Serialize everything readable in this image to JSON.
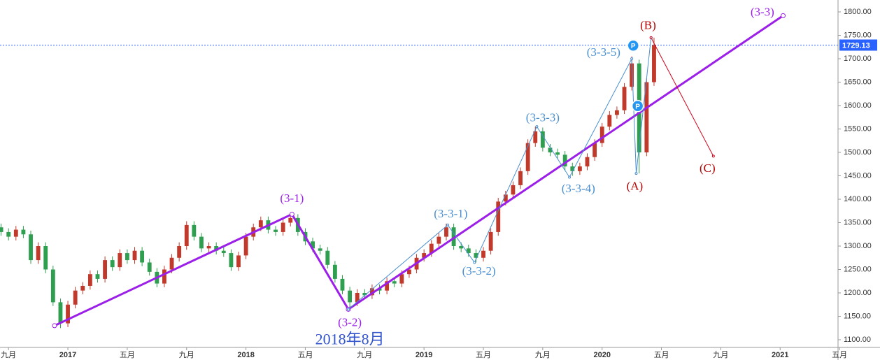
{
  "chart_data": {
    "type": "candlestick",
    "x": [
      -0.5,
      0,
      0.5,
      1,
      1.5,
      2,
      2.5,
      3,
      3.5,
      4,
      4.5,
      5,
      5.5,
      6,
      6.5,
      7,
      7.5,
      8,
      8.5,
      9,
      9.5,
      10,
      10.5,
      11,
      11.5,
      12,
      12.5,
      13,
      13.5,
      14,
      14.5,
      15,
      15.5,
      16,
      16.5,
      17,
      17.5,
      18,
      18.5,
      19,
      19.5,
      20,
      20.5,
      21,
      21.5,
      22,
      22.5,
      23,
      23.5,
      24,
      24.5,
      25,
      25.5,
      26,
      26.5,
      27,
      27.5,
      28,
      28.5,
      29,
      29.5,
      30,
      30.5,
      31,
      31.5,
      32,
      32.5,
      33,
      33.5,
      34,
      34.5,
      35,
      35.5,
      36,
      36.5,
      37,
      37.5,
      38,
      38.5,
      39,
      39.5,
      40,
      40.5,
      41,
      41.5,
      42,
      42.5,
      43,
      43.5
    ],
    "open": [
      1340,
      1330,
      1320,
      1335,
      1325,
      1270,
      1300,
      1250,
      1180,
      1135,
      1175,
      1205,
      1215,
      1240,
      1230,
      1270,
      1255,
      1285,
      1270,
      1290,
      1265,
      1245,
      1220,
      1250,
      1275,
      1300,
      1345,
      1320,
      1295,
      1300,
      1290,
      1285,
      1255,
      1280,
      1320,
      1340,
      1355,
      1335,
      1330,
      1350,
      1360,
      1330,
      1310,
      1295,
      1290,
      1260,
      1230,
      1205,
      1180,
      1200,
      1195,
      1210,
      1205,
      1225,
      1220,
      1240,
      1250,
      1275,
      1285,
      1305,
      1320,
      1340,
      1300,
      1295,
      1285,
      1275,
      1290,
      1330,
      1395,
      1410,
      1430,
      1460,
      1520,
      1545,
      1510,
      1500,
      1495,
      1470,
      1460,
      1470,
      1490,
      1520,
      1555,
      1580,
      1590,
      1640,
      1690,
      1500,
      1650
    ],
    "high": [
      1348,
      1338,
      1343,
      1343,
      1333,
      1308,
      1308,
      1258,
      1188,
      1183,
      1213,
      1223,
      1248,
      1248,
      1278,
      1278,
      1293,
      1293,
      1298,
      1298,
      1273,
      1253,
      1258,
      1283,
      1308,
      1353,
      1353,
      1328,
      1308,
      1308,
      1298,
      1293,
      1288,
      1328,
      1348,
      1363,
      1363,
      1343,
      1358,
      1368,
      1368,
      1338,
      1318,
      1303,
      1298,
      1268,
      1238,
      1213,
      1208,
      1208,
      1218,
      1218,
      1233,
      1233,
      1248,
      1258,
      1283,
      1293,
      1313,
      1328,
      1348,
      1348,
      1308,
      1303,
      1293,
      1298,
      1338,
      1403,
      1418,
      1438,
      1468,
      1528,
      1555,
      1553,
      1518,
      1508,
      1503,
      1478,
      1478,
      1498,
      1528,
      1563,
      1588,
      1598,
      1648,
      1705,
      1698,
      1658,
      1745
    ],
    "low": [
      1322,
      1312,
      1312,
      1317,
      1262,
      1262,
      1242,
      1172,
      1125,
      1127,
      1167,
      1197,
      1207,
      1222,
      1222,
      1247,
      1247,
      1262,
      1262,
      1257,
      1237,
      1212,
      1212,
      1242,
      1267,
      1292,
      1312,
      1287,
      1287,
      1282,
      1277,
      1247,
      1247,
      1272,
      1312,
      1332,
      1327,
      1322,
      1322,
      1342,
      1322,
      1302,
      1287,
      1282,
      1252,
      1222,
      1197,
      1165,
      1172,
      1187,
      1187,
      1197,
      1197,
      1212,
      1212,
      1232,
      1242,
      1267,
      1277,
      1297,
      1312,
      1292,
      1287,
      1277,
      1265,
      1267,
      1282,
      1322,
      1387,
      1402,
      1422,
      1452,
      1512,
      1502,
      1492,
      1487,
      1462,
      1450,
      1452,
      1462,
      1482,
      1512,
      1547,
      1572,
      1582,
      1632,
      1455,
      1492,
      1642
    ],
    "close": [
      1330,
      1320,
      1335,
      1325,
      1270,
      1300,
      1250,
      1180,
      1135,
      1175,
      1205,
      1215,
      1240,
      1230,
      1270,
      1255,
      1285,
      1270,
      1290,
      1265,
      1245,
      1220,
      1250,
      1275,
      1300,
      1345,
      1320,
      1295,
      1300,
      1290,
      1285,
      1255,
      1280,
      1320,
      1340,
      1355,
      1335,
      1330,
      1350,
      1360,
      1330,
      1310,
      1295,
      1290,
      1260,
      1230,
      1205,
      1180,
      1200,
      1195,
      1210,
      1205,
      1225,
      1220,
      1240,
      1250,
      1275,
      1285,
      1305,
      1320,
      1340,
      1300,
      1295,
      1285,
      1275,
      1290,
      1330,
      1395,
      1410,
      1430,
      1460,
      1520,
      1545,
      1510,
      1500,
      1495,
      1470,
      1460,
      1470,
      1490,
      1520,
      1555,
      1580,
      1590,
      1640,
      1690,
      1500,
      1650,
      1729
    ],
    "up_color": "#c0392b",
    "down_color": "#2e9e4f",
    "xlim": [
      -0.575,
      55.9
    ],
    "ylim": [
      1083.6,
      1825.4
    ],
    "xticks": [
      {
        "value": 0,
        "label": "九月"
      },
      {
        "value": 4,
        "label": "2017"
      },
      {
        "value": 8,
        "label": "五月"
      },
      {
        "value": 12,
        "label": "九月"
      },
      {
        "value": 16,
        "label": "2018"
      },
      {
        "value": 20,
        "label": "五月"
      },
      {
        "value": 24,
        "label": "九月"
      },
      {
        "value": 28,
        "label": "2019"
      },
      {
        "value": 32,
        "label": "五月"
      },
      {
        "value": 36,
        "label": "九月"
      },
      {
        "value": 40,
        "label": "2020"
      },
      {
        "value": 44,
        "label": "五月"
      },
      {
        "value": 48,
        "label": "九月"
      },
      {
        "value": 52,
        "label": "2021"
      },
      {
        "value": 56,
        "label": "五月"
      }
    ],
    "yticks": [
      {
        "value": 1100,
        "label": "1100.00"
      },
      {
        "value": 1150,
        "label": "1150.00"
      },
      {
        "value": 1200,
        "label": "1200.00"
      },
      {
        "value": 1250,
        "label": "1250.00"
      },
      {
        "value": 1300,
        "label": "1300.00"
      },
      {
        "value": 1350,
        "label": "1350.00"
      },
      {
        "value": 1400,
        "label": "1400.00"
      },
      {
        "value": 1450,
        "label": "1450.00"
      },
      {
        "value": 1500,
        "label": "1500.00"
      },
      {
        "value": 1550,
        "label": "1550.00"
      },
      {
        "value": 1600,
        "label": "1600.00"
      },
      {
        "value": 1650,
        "label": "1650.00"
      },
      {
        "value": 1700,
        "label": "1700.00"
      },
      {
        "value": 1750,
        "label": "1750.00"
      },
      {
        "value": 1800,
        "label": "1800.00"
      }
    ],
    "last_price": 1729.13,
    "last_price_color": "#2962ff",
    "wave_lines": [
      {
        "color": "#9b1fe8",
        "width": 3,
        "x": [
          3.1,
          19.1,
          22.9,
          52.2
        ],
        "y": [
          1130,
          1368,
          1165,
          1792
        ]
      },
      {
        "color": "#4a8fd0",
        "width": 1,
        "x": [
          22.9,
          29.6,
          31.4,
          35.6,
          37.8,
          42,
          42.3,
          43.3
        ],
        "y": [
          1165,
          1345,
          1265,
          1555,
          1447,
          1700,
          1455,
          1745
        ]
      },
      {
        "color": "#d0021b",
        "width": 1,
        "x": [
          43.3,
          47.5
        ],
        "y": [
          1745,
          1492
        ]
      }
    ],
    "annotations": [
      {
        "label": "(3-1)",
        "x": 19.1,
        "y": 1400,
        "color": "#9b1fe8"
      },
      {
        "label": "(3-2)",
        "x": 23.0,
        "y": 1135,
        "color": "#9b1fe8"
      },
      {
        "label": "(3-3)",
        "x": 50.8,
        "y": 1798,
        "color": "#9b1fe8"
      },
      {
        "label": "(3-3-1)",
        "x": 29.8,
        "y": 1367,
        "color": "#4a8fd0"
      },
      {
        "label": "(3-3-2)",
        "x": 31.7,
        "y": 1245,
        "color": "#4a8fd0"
      },
      {
        "label": "(3-3-3)",
        "x": 36.0,
        "y": 1572,
        "color": "#4a8fd0"
      },
      {
        "label": "(3-3-4)",
        "x": 38.4,
        "y": 1421,
        "color": "#4a8fd0"
      },
      {
        "label": "(3-3-5)",
        "x": 40.1,
        "y": 1712,
        "color": "#4a8fd0"
      },
      {
        "label": "(A)",
        "x": 42.2,
        "y": 1426,
        "color": "#b00000"
      },
      {
        "label": "(B)",
        "x": 43.1,
        "y": 1769,
        "color": "#b00000"
      },
      {
        "label": "(C)",
        "x": 47.1,
        "y": 1464,
        "color": "#b00000"
      },
      {
        "label": "2018年8月",
        "x": 23.0,
        "y": 1098,
        "color": "#3355cc"
      }
    ],
    "markers": [
      {
        "label": "P",
        "x": 42.1,
        "y": 1728
      },
      {
        "label": "P",
        "x": 42.4,
        "y": 1599
      }
    ]
  }
}
